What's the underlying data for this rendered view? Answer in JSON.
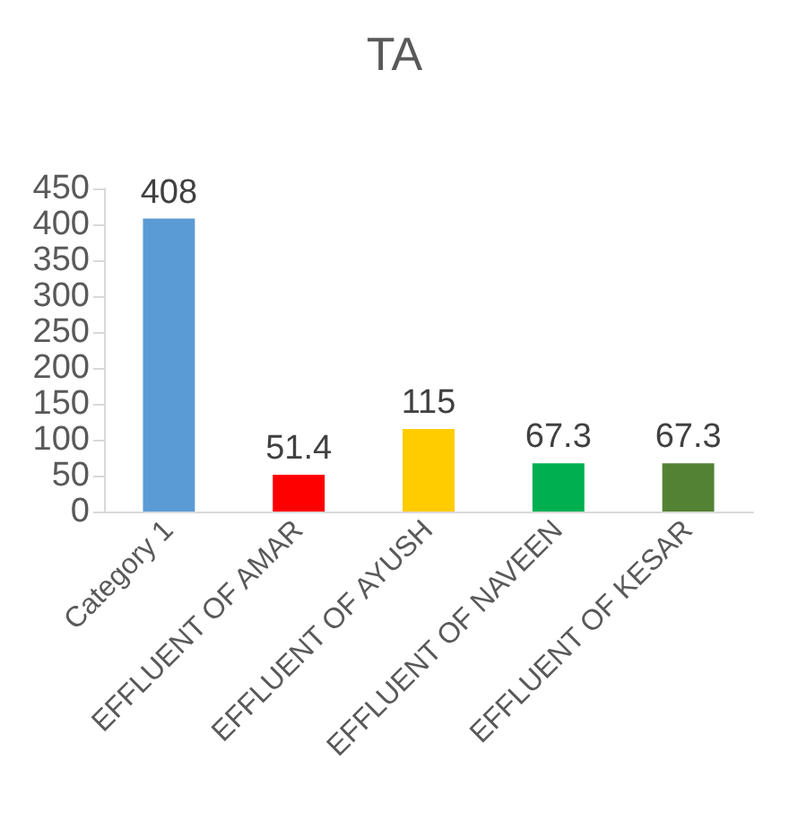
{
  "chart_data": {
    "type": "bar",
    "title": "TA",
    "categories": [
      "Category 1",
      "EFFLUENT OF AMAR",
      "EFFLUENT OF AYUSH",
      "EFFLUENT OF NAVEEN",
      "EFFLUENT OF KESAR"
    ],
    "values": [
      408,
      51.4,
      115,
      67.3,
      67.3
    ],
    "colors": [
      "#5b9bd5",
      "#ff0000",
      "#ffcc00",
      "#00b050",
      "#548235"
    ],
    "ylim": [
      0,
      450
    ],
    "yticks": [
      0,
      50,
      100,
      150,
      200,
      250,
      300,
      350,
      400,
      450
    ],
    "grid": false,
    "data_labels": true
  }
}
